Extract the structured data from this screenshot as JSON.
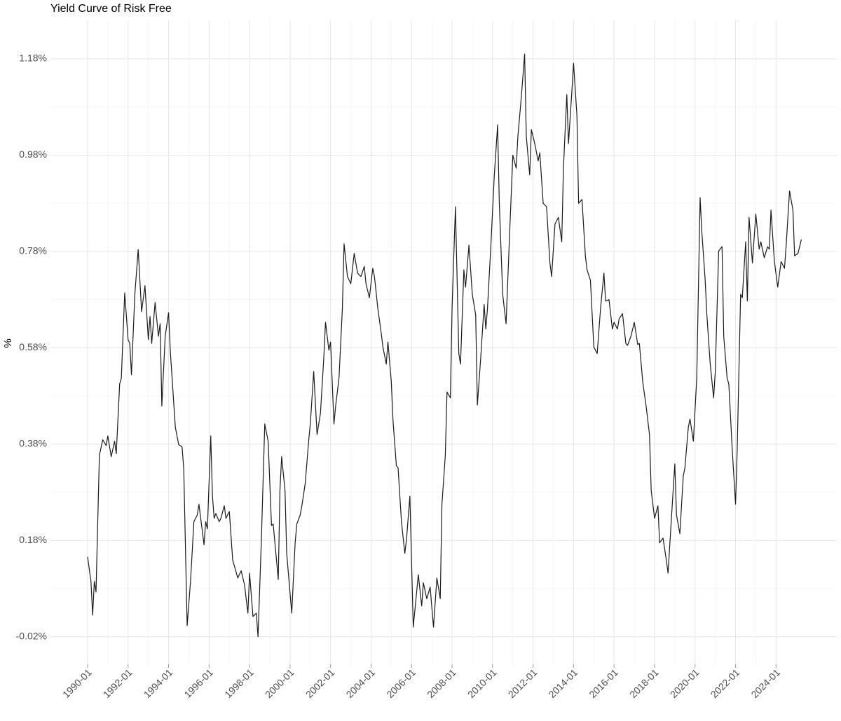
{
  "chart_data": {
    "type": "line",
    "title": "Yield Curve of Risk Free",
    "y_label": "%",
    "color": "#1a1a1a",
    "grid": true,
    "xlim": [
      "1988-03",
      "2027-01"
    ],
    "xticks": [
      "1990-01",
      "1992-01",
      "1994-01",
      "1996-01",
      "1998-01",
      "2000-01",
      "2002-01",
      "2004-01",
      "2006-01",
      "2008-01",
      "2010-01",
      "2012-01",
      "2014-01",
      "2016-01",
      "2018-01",
      "2020-01",
      "2022-01",
      "2024-01"
    ],
    "ylim": [
      -0.08,
      1.26
    ],
    "yticks": [
      {
        "value": -0.02,
        "label": "-0.02%"
      },
      {
        "value": 0.18,
        "label": "0.18%"
      },
      {
        "value": 0.38,
        "label": "0.38%"
      },
      {
        "value": 0.58,
        "label": "0.58%"
      },
      {
        "value": 0.78,
        "label": "0.78%"
      },
      {
        "value": 0.98,
        "label": "0.98%"
      },
      {
        "value": 1.18,
        "label": "1.18%"
      }
    ],
    "x": [
      "1990-01",
      "1990-03",
      "1990-04",
      "1990-05",
      "1990-06",
      "1990-08",
      "1990-10",
      "1990-12",
      "1991-01",
      "1991-03",
      "1991-05",
      "1991-06",
      "1991-08",
      "1991-09",
      "1991-11",
      "1992-01",
      "1992-02",
      "1992-03",
      "1992-05",
      "1992-07",
      "1992-08",
      "1992-09",
      "1992-11",
      "1993-01",
      "1993-02",
      "1993-03",
      "1993-05",
      "1993-07",
      "1993-08",
      "1993-09",
      "1993-11",
      "1994-01",
      "1994-02",
      "1994-05",
      "1994-07",
      "1994-09",
      "1994-10",
      "1994-12",
      "1995-02",
      "1995-04",
      "1995-06",
      "1995-07",
      "1995-10",
      "1995-11",
      "1995-12",
      "1996-02",
      "1996-03",
      "1996-04",
      "1996-05",
      "1996-07",
      "1996-08",
      "1996-10",
      "1996-11",
      "1997-01",
      "1997-03",
      "1997-04",
      "1997-06",
      "1997-08",
      "1997-10",
      "1997-12",
      "1998-01",
      "1998-03",
      "1998-05",
      "1998-06",
      "1998-08",
      "1998-10",
      "1998-12",
      "1999-02",
      "1999-03",
      "1999-06",
      "1999-07",
      "1999-08",
      "1999-10",
      "1999-11",
      "2000-02",
      "2000-04",
      "2000-05",
      "2000-07",
      "2000-08",
      "2000-10",
      "2000-12",
      "2001-01",
      "2001-03",
      "2001-05",
      "2001-07",
      "2001-09",
      "2001-10",
      "2001-12",
      "2002-01",
      "2002-03",
      "2002-04",
      "2002-06",
      "2002-08",
      "2002-09",
      "2002-11",
      "2003-01",
      "2003-03",
      "2003-05",
      "2003-07",
      "2003-09",
      "2003-10",
      "2003-12",
      "2004-02",
      "2004-03",
      "2004-05",
      "2004-07",
      "2004-08",
      "2004-10",
      "2004-11",
      "2005-01",
      "2005-02",
      "2005-04",
      "2005-05",
      "2005-07",
      "2005-09",
      "2005-10",
      "2005-12",
      "2006-02",
      "2006-05",
      "2006-07",
      "2006-08",
      "2006-10",
      "2006-12",
      "2007-02",
      "2007-04",
      "2007-06",
      "2007-07",
      "2007-09",
      "2007-10",
      "2007-12",
      "2008-01",
      "2008-03",
      "2008-05",
      "2008-06",
      "2008-08",
      "2008-09",
      "2008-11",
      "2009-01",
      "2009-03",
      "2009-04",
      "2009-06",
      "2009-08",
      "2009-09",
      "2009-10",
      "2009-12",
      "2010-02",
      "2010-04",
      "2010-05",
      "2010-07",
      "2010-09",
      "2010-11",
      "2011-01",
      "2011-03",
      "2011-04",
      "2011-06",
      "2011-08",
      "2011-09",
      "2011-11",
      "2011-12",
      "2012-02",
      "2012-04",
      "2012-05",
      "2012-07",
      "2012-09",
      "2012-11",
      "2012-12",
      "2013-02",
      "2013-04",
      "2013-06",
      "2013-07",
      "2013-09",
      "2013-10",
      "2013-12",
      "2014-01",
      "2014-03",
      "2014-04",
      "2014-06",
      "2014-08",
      "2014-09",
      "2014-11",
      "2015-01",
      "2015-03",
      "2015-05",
      "2015-07",
      "2015-08",
      "2015-10",
      "2015-12",
      "2016-01",
      "2016-03",
      "2016-04",
      "2016-06",
      "2016-08",
      "2016-09",
      "2016-11",
      "2017-01",
      "2017-03",
      "2017-04",
      "2017-06",
      "2017-08",
      "2017-10",
      "2017-11",
      "2018-01",
      "2018-03",
      "2018-04",
      "2018-06",
      "2018-08",
      "2018-09",
      "2018-11",
      "2019-01",
      "2019-02",
      "2019-04",
      "2019-06",
      "2019-07",
      "2019-09",
      "2019-10",
      "2019-12",
      "2020-02",
      "2020-04",
      "2020-05",
      "2020-07",
      "2020-08",
      "2020-10",
      "2020-12",
      "2021-01",
      "2021-03",
      "2021-05",
      "2021-06",
      "2021-08",
      "2021-09",
      "2021-11",
      "2022-01",
      "2022-02",
      "2022-04",
      "2022-05",
      "2022-07",
      "2022-08",
      "2022-09",
      "2022-11",
      "2023-01",
      "2023-03",
      "2023-04",
      "2023-06",
      "2023-08",
      "2023-09",
      "2023-10",
      "2023-12",
      "2024-02",
      "2024-04",
      "2024-06",
      "2024-07",
      "2024-09",
      "2024-11",
      "2024-12",
      "2025-02",
      "2025-04"
    ],
    "values": [
      0.146,
      0.095,
      0.025,
      0.095,
      0.073,
      0.357,
      0.389,
      0.377,
      0.397,
      0.354,
      0.386,
      0.36,
      0.505,
      0.517,
      0.694,
      0.597,
      0.589,
      0.524,
      0.691,
      0.784,
      0.72,
      0.655,
      0.709,
      0.597,
      0.645,
      0.589,
      0.674,
      0.604,
      0.63,
      0.459,
      0.604,
      0.653,
      0.575,
      0.415,
      0.379,
      0.374,
      0.328,
      0.003,
      0.095,
      0.219,
      0.233,
      0.255,
      0.171,
      0.219,
      0.204,
      0.397,
      0.272,
      0.226,
      0.236,
      0.219,
      0.226,
      0.252,
      0.226,
      0.24,
      0.139,
      0.127,
      0.102,
      0.117,
      0.088,
      0.029,
      0.112,
      0.022,
      0.029,
      -0.02,
      0.182,
      0.422,
      0.386,
      0.211,
      0.214,
      0.099,
      0.284,
      0.354,
      0.284,
      0.153,
      0.029,
      0.175,
      0.214,
      0.233,
      0.252,
      0.299,
      0.386,
      0.422,
      0.531,
      0.4,
      0.444,
      0.56,
      0.633,
      0.575,
      0.592,
      0.422,
      0.459,
      0.517,
      0.662,
      0.796,
      0.728,
      0.713,
      0.776,
      0.735,
      0.728,
      0.749,
      0.713,
      0.684,
      0.745,
      0.728,
      0.662,
      0.611,
      0.582,
      0.546,
      0.592,
      0.509,
      0.429,
      0.335,
      0.331,
      0.219,
      0.153,
      0.182,
      0.272,
      0.0,
      0.109,
      0.044,
      0.092,
      0.059,
      0.083,
      0.0,
      0.102,
      0.059,
      0.255,
      0.357,
      0.488,
      0.476,
      0.662,
      0.873,
      0.568,
      0.546,
      0.742,
      0.706,
      0.793,
      0.691,
      0.648,
      0.461,
      0.56,
      0.67,
      0.619,
      0.662,
      0.793,
      0.936,
      1.043,
      0.88,
      0.691,
      0.63,
      0.807,
      0.98,
      0.953,
      1.019,
      1.099,
      1.19,
      1.019,
      0.939,
      1.033,
      1.004,
      0.968,
      0.985,
      0.88,
      0.873,
      0.756,
      0.728,
      0.837,
      0.851,
      0.8,
      0.953,
      1.106,
      1.004,
      1.113,
      1.171,
      1.062,
      0.88,
      0.888,
      0.771,
      0.742,
      0.72,
      0.582,
      0.568,
      0.662,
      0.735,
      0.677,
      0.68,
      0.619,
      0.633,
      0.619,
      0.64,
      0.651,
      0.589,
      0.585,
      0.604,
      0.633,
      0.587,
      0.589,
      0.509,
      0.459,
      0.4,
      0.284,
      0.226,
      0.252,
      0.175,
      0.185,
      0.139,
      0.112,
      0.226,
      0.339,
      0.233,
      0.194,
      0.313,
      0.331,
      0.415,
      0.432,
      0.386,
      0.517,
      0.892,
      0.822,
      0.72,
      0.648,
      0.546,
      0.476,
      0.531,
      0.781,
      0.79,
      0.604,
      0.517,
      0.505,
      0.371,
      0.255,
      0.371,
      0.691,
      0.684,
      0.8,
      0.677,
      0.851,
      0.756,
      0.858,
      0.785,
      0.8,
      0.767,
      0.79,
      0.785,
      0.866,
      0.76,
      0.706,
      0.759,
      0.745,
      0.793,
      0.906,
      0.866,
      0.771,
      0.776,
      0.805
    ]
  }
}
